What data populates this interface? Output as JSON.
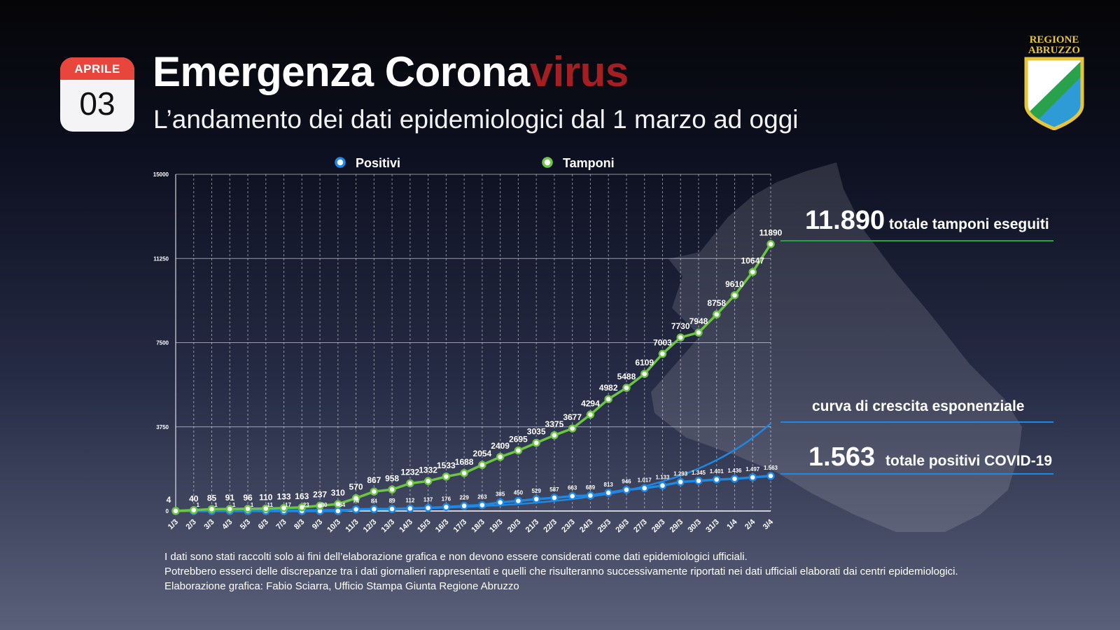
{
  "header": {
    "calendar_month": "APRILE",
    "calendar_day": "03",
    "title_main": "Emergenza Corona",
    "title_accent": "virus",
    "subtitle": "L’andamento dei dati epidemiologici dal 1 marzo ad oggi",
    "logo_line1": "REGIONE",
    "logo_line2": "ABRUZZO"
  },
  "callouts": {
    "tamponi_value": "11.890",
    "tamponi_label": "totale tamponi eseguiti",
    "curve_label": "curva di crescita esponenziale",
    "positivi_value": "1.563",
    "positivi_label": "totale positivi COVID-19"
  },
  "colors": {
    "positivi": "#1e88e5",
    "tamponi": "#6cc644",
    "exponential": "#1e88e5",
    "title_accent": "#a51f22",
    "calendar_red": "#e8453c"
  },
  "footer": {
    "line1": "I dati sono stati raccolti solo ai fini dell’elaborazione grafica e non devono essere considerati come dati epidemiologici ufficiali.",
    "line2": "Potrebbero esserci delle discrepanze tra i dati giornalieri rappresentati e quelli che risulteranno successivamente riportati nei dati ufficiali elaborati dai centri epidemiologici.",
    "line3": "Elaborazione grafica: Fabio Sciarra, Ufficio Stampa Giunta Regione Abruzzo"
  },
  "chart_data": {
    "type": "line",
    "x": [
      "1/3",
      "2/3",
      "3/3",
      "4/3",
      "5/3",
      "6/3",
      "7/3",
      "8/3",
      "9/3",
      "10/3",
      "11/3",
      "12/3",
      "13/3",
      "14/3",
      "15/3",
      "16/3",
      "17/3",
      "18/3",
      "19/3",
      "20/3",
      "21/3",
      "22/3",
      "23/3",
      "24/3",
      "25/3",
      "26/3",
      "27/3",
      "28/3",
      "29/3",
      "30/3",
      "31/3",
      "1/4",
      "2/4",
      "3/4"
    ],
    "ylim": [
      0,
      15000
    ],
    "yticks": [
      "0",
      "3750",
      "7500",
      "11250",
      "15000"
    ],
    "ytick_values": [
      0,
      3750,
      7500,
      11250,
      15000
    ],
    "legend_position": "top",
    "grid": true,
    "series": [
      {
        "name": "Positivi",
        "color": "#1e88e5",
        "values": [
          0,
          0,
          0,
          0,
          0,
          0,
          0,
          0,
          0,
          0,
          74,
          84,
          89,
          112,
          137,
          176,
          229,
          263,
          385,
          450,
          529,
          587,
          663,
          689,
          813,
          946,
          1017,
          1133,
          1293,
          1345,
          1401,
          1436,
          1497,
          1563
        ],
        "labels": [
          "",
          "",
          "",
          "",
          "",
          "",
          "",
          "",
          "",
          "",
          "74",
          "84",
          "89",
          "112",
          "137",
          "176",
          "229",
          "263",
          "385",
          "450",
          "529",
          "587",
          "663",
          "689",
          "813",
          "946",
          "1.017",
          "1.133",
          "1.293",
          "1.345",
          "1.401",
          "1.436",
          "1.497",
          "1.563"
        ]
      },
      {
        "name": "Tamponi",
        "color": "#6cc644",
        "values": [
          4,
          40,
          85,
          91,
          96,
          110,
          133,
          163,
          237,
          310,
          570,
          867,
          958,
          1232,
          1332,
          1533,
          1688,
          2054,
          2409,
          2695,
          3035,
          3375,
          3677,
          4294,
          4982,
          5488,
          6109,
          7003,
          7730,
          7948,
          8758,
          9610,
          10647,
          11890
        ],
        "labels": [
          "4",
          "40",
          "85",
          "91",
          "96",
          "110",
          "133",
          "163",
          "237",
          "310",
          "570",
          "867",
          "958",
          "1232",
          "1332",
          "1533",
          "1688",
          "2054",
          "2409",
          "2695",
          "3035",
          "3375",
          "3677",
          "4294",
          "4982",
          "5488",
          "6109",
          "7003",
          "7730",
          "7948",
          "8758",
          "9610",
          "10647",
          "11890"
        ]
      }
    ],
    "small_labels_early": [
      "1",
      "1",
      "1",
      "1",
      "11",
      "17",
      "23",
      "30",
      "54"
    ],
    "trendline": {
      "name": "curva di crescita esponenziale",
      "type": "exponential",
      "end_value": 3900
    }
  }
}
